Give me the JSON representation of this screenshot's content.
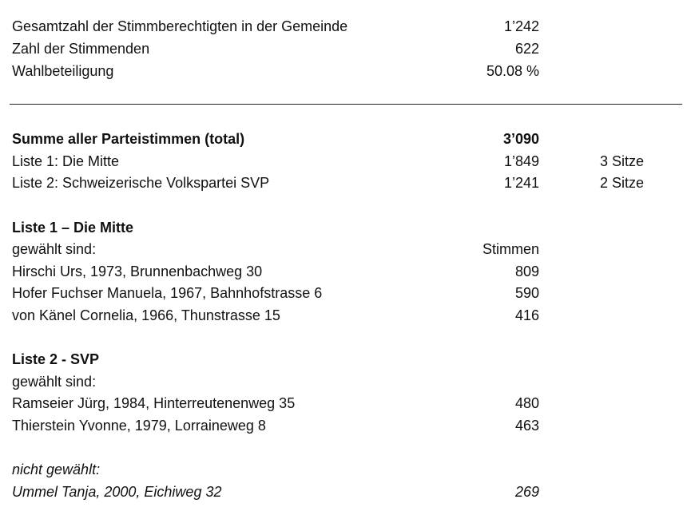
{
  "summary": [
    {
      "label": "Gesamtzahl der Stimmberechtigten in der Gemeinde",
      "value": "1’242"
    },
    {
      "label": "Zahl der Stimmenden",
      "value": "622"
    },
    {
      "label": "Wahlbeteiligung",
      "value": "50.08 %"
    }
  ],
  "parties": {
    "total_label": "Summe aller Parteistimmen (total)",
    "total_value": "3’090",
    "lists": [
      {
        "label": "Liste 1: Die Mitte",
        "value": "1’849",
        "seats": "3 Sitze"
      },
      {
        "label": "Liste 2: Schweizerische Volkspartei SVP",
        "value": "1’241",
        "seats": "2 Sitze"
      }
    ]
  },
  "list1": {
    "heading": "Liste 1 – Die Mitte",
    "elected_label": "gewählt sind:",
    "votes_header": "Stimmen",
    "candidates": [
      {
        "name": "Hirschi Urs, 1973, Brunnenbachweg 30",
        "votes": "809"
      },
      {
        "name": "Hofer Fuchser Manuela, 1967, Bahnhofstrasse 6",
        "votes": "590"
      },
      {
        "name": "von Känel Cornelia, 1966, Thunstrasse 15",
        "votes": "416"
      }
    ]
  },
  "list2": {
    "heading": "Liste 2 - SVP",
    "elected_label": "gewählt sind:",
    "candidates": [
      {
        "name": "Ramseier Jürg, 1984, Hinterreutenenweg 35",
        "votes": "480"
      },
      {
        "name": "Thierstein Yvonne, 1979, Lorraineweg 8",
        "votes": "463"
      }
    ],
    "not_elected_label": "nicht gewählt:",
    "not_elected": [
      {
        "name": "Ummel Tanja, 2000, Eichiweg 32",
        "votes": "269"
      }
    ]
  }
}
